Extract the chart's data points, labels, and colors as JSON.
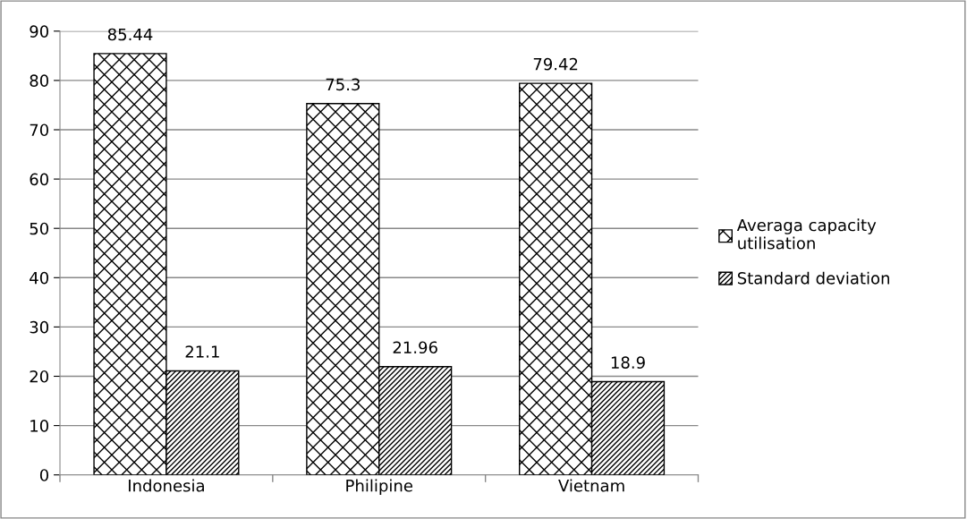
{
  "chart_data": {
    "type": "bar",
    "categories": [
      "Indonesia",
      "Philipine",
      "Vietnam"
    ],
    "series": [
      {
        "name": "Averaga capacity utilisation",
        "color": "#000000",
        "values": [
          85.44,
          75.3,
          79.42
        ]
      },
      {
        "name": "Standard deviation",
        "color": "#000000",
        "values": [
          21.1,
          21.96,
          18.9
        ]
      }
    ],
    "ylim": [
      0,
      90
    ],
    "yticks": [
      0,
      10,
      20,
      30,
      40,
      50,
      60,
      70,
      80,
      90
    ],
    "grid": "y",
    "legend": "right",
    "data_labels": true
  }
}
